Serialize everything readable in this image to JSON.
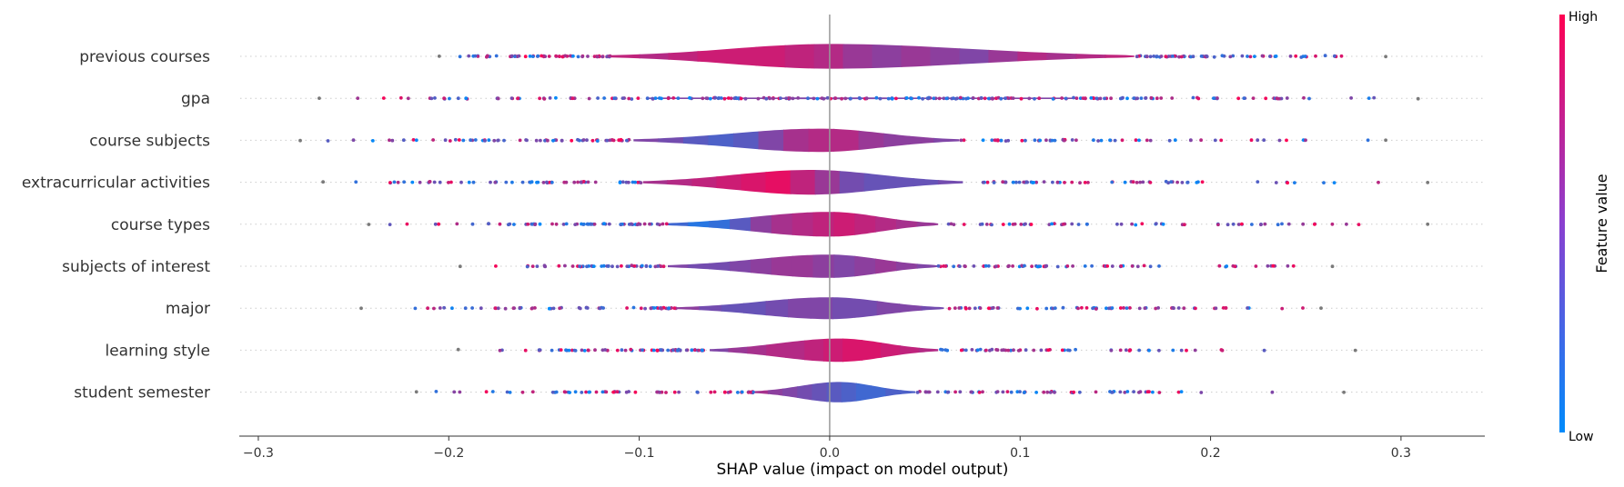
{
  "chart_data": {
    "type": "violin",
    "xlabel": "SHAP value (impact on model output)",
    "xlim": [
      -0.31,
      0.344
    ],
    "xticks": [
      -0.3,
      -0.2,
      -0.1,
      0.0,
      0.1,
      0.2,
      0.3
    ],
    "xtick_labels": [
      "−0.3",
      "−0.2",
      "−0.1",
      "0.0",
      "0.1",
      "0.2",
      "0.3"
    ],
    "colorbar": {
      "title": "Feature value",
      "high_label": "High",
      "low_label": "Low",
      "high_color": "#ff0052",
      "low_color": "#008bfb"
    },
    "features": [
      {
        "name": "previous courses",
        "range": [
          -0.205,
          0.292
        ],
        "body": [
          -0.115,
          0.16
        ],
        "peak": 0.0,
        "width": 0.85,
        "tint": [
          0.75,
          0.7,
          0.75,
          0.8,
          0.8,
          0.8,
          0.75,
          0.7,
          0.6,
          0.55,
          0.6,
          0.55,
          0.5,
          0.6,
          0.7,
          0.65,
          0.7,
          0.75
        ]
      },
      {
        "name": "gpa",
        "range": [
          -0.268,
          0.309
        ],
        "body": [
          -0.095,
          0.13
        ],
        "peak": 0.0,
        "width": 0.06,
        "tint": [
          0.5
        ]
      },
      {
        "name": "course subjects",
        "range": [
          -0.278,
          0.292
        ],
        "body": [
          -0.103,
          0.068
        ],
        "peak": -0.005,
        "width": 0.8,
        "tint": [
          0.5,
          0.45,
          0.35,
          0.3,
          0.35,
          0.5,
          0.65,
          0.7,
          0.7,
          0.6,
          0.55,
          0.55,
          0.5
        ]
      },
      {
        "name": "extracurricular activities",
        "range": [
          -0.266,
          0.314
        ],
        "body": [
          -0.098,
          0.07
        ],
        "peak": -0.01,
        "width": 0.85,
        "tint": [
          0.65,
          0.7,
          0.75,
          0.8,
          0.85,
          0.9,
          0.75,
          0.6,
          0.45,
          0.4,
          0.4,
          0.4,
          0.45
        ]
      },
      {
        "name": "course types",
        "range": [
          -0.242,
          0.314
        ],
        "body": [
          -0.085,
          0.057
        ],
        "peak": 0.0,
        "width": 0.85,
        "tint": [
          0.25,
          0.15,
          0.2,
          0.35,
          0.55,
          0.65,
          0.7,
          0.75,
          0.8,
          0.75,
          0.7,
          0.65,
          0.6
        ]
      },
      {
        "name": "subjects of interest",
        "range": [
          -0.194,
          0.264
        ],
        "body": [
          -0.085,
          0.057
        ],
        "peak": 0.0,
        "width": 0.8,
        "tint": [
          0.5,
          0.45,
          0.45,
          0.5,
          0.55,
          0.6,
          0.6,
          0.55,
          0.5,
          0.55,
          0.6,
          0.55,
          0.5
        ]
      },
      {
        "name": "major",
        "range": [
          -0.246,
          0.258
        ],
        "body": [
          -0.08,
          0.06
        ],
        "peak": 0.0,
        "width": 0.75,
        "tint": [
          0.55,
          0.45,
          0.4,
          0.4,
          0.45,
          0.5,
          0.5,
          0.45,
          0.45,
          0.5,
          0.5,
          0.45
        ]
      },
      {
        "name": "learning style",
        "range": [
          -0.195,
          0.276
        ],
        "body": [
          -0.063,
          0.057
        ],
        "peak": 0.005,
        "width": 0.8,
        "tint": [
          0.5,
          0.6,
          0.65,
          0.7,
          0.7,
          0.75,
          0.8,
          0.85,
          0.85,
          0.8,
          0.75,
          0.7
        ]
      },
      {
        "name": "student semester",
        "range": [
          -0.217,
          0.27
        ],
        "body": [
          -0.04,
          0.045
        ],
        "peak": 0.005,
        "width": 0.7,
        "tint": [
          0.65,
          0.55,
          0.5,
          0.45,
          0.4,
          0.35,
          0.3,
          0.25,
          0.25,
          0.3,
          0.3
        ]
      }
    ]
  }
}
